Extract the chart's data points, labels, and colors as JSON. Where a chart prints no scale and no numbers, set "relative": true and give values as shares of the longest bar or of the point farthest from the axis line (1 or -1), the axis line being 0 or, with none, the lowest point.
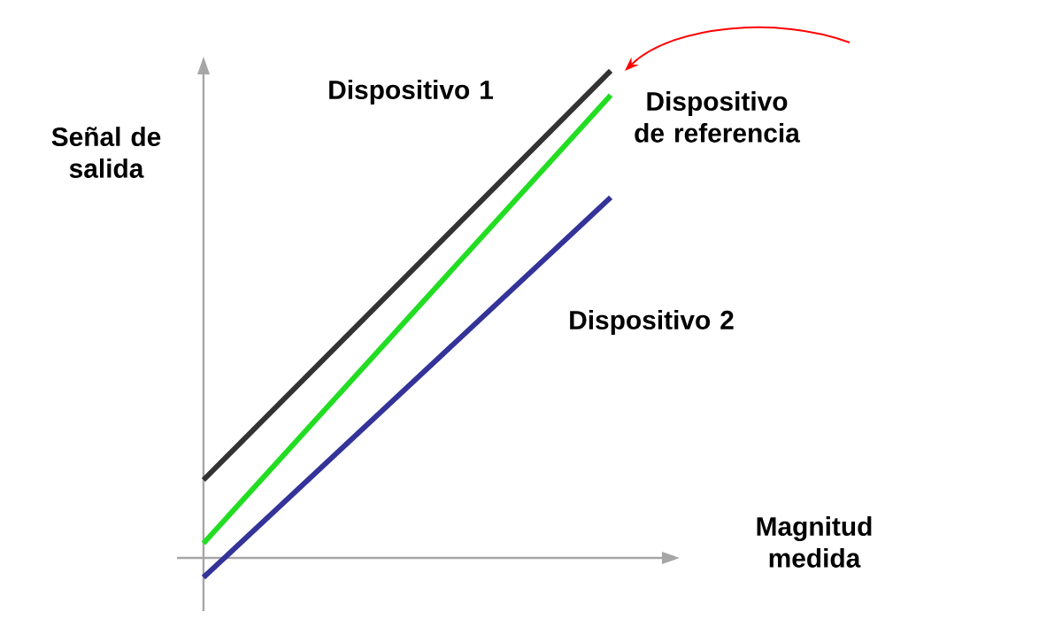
{
  "chart_data": {
    "type": "line",
    "relative": true,
    "xlabel": "Magnitud medida",
    "ylabel": "Señal de salida",
    "categories": [
      null,
      null
    ],
    "series": [
      {
        "name": "Dispositivo 1",
        "color": "#333333",
        "values": [
          0.16,
          1
        ]
      },
      {
        "name": "Dispositivo de referencia",
        "color": "#22dd22",
        "values": [
          0.03,
          0.95
        ]
      },
      {
        "name": "Dispositivo 2",
        "color": "#333399",
        "values": [
          -0.04,
          0.74
        ]
      }
    ]
  }
}
